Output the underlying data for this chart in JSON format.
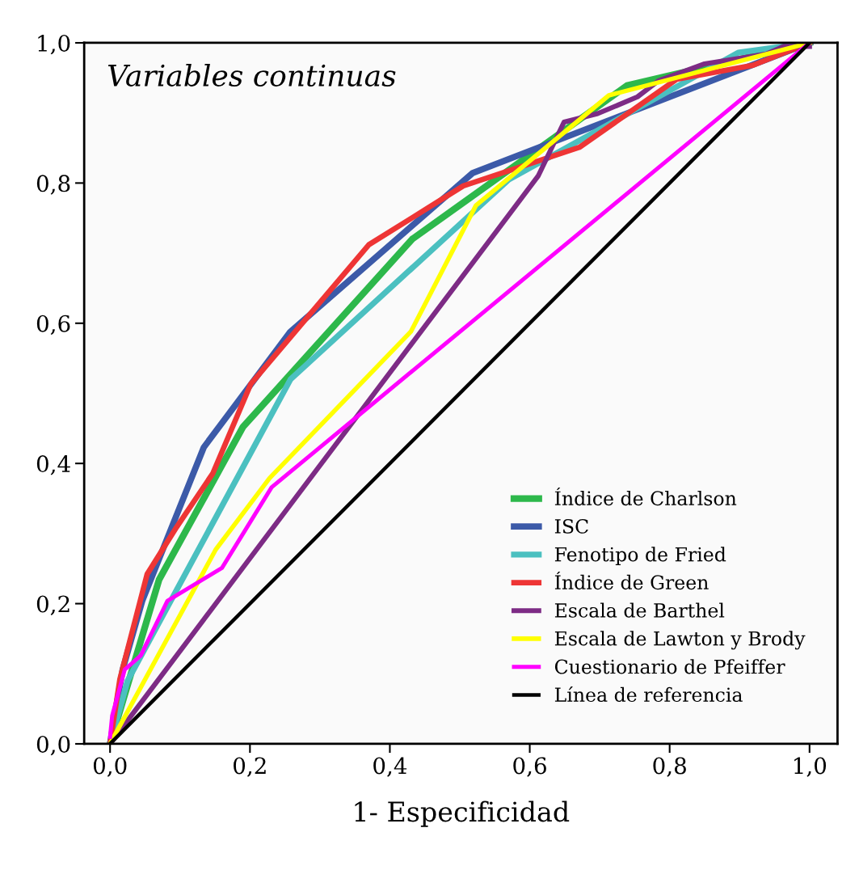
{
  "chart_data": {
    "type": "line",
    "xlabel": "1- Especificidad",
    "annotations": [
      "Variables continuas"
    ],
    "xlim": [
      -0.037,
      1.04
    ],
    "ylim": [
      0,
      1.0
    ],
    "xticks": [
      {
        "value": 0,
        "label": "0,0"
      },
      {
        "value": 0.2,
        "label": "0,2"
      },
      {
        "value": 0.4,
        "label": "0,4"
      },
      {
        "value": 0.6,
        "label": "0,6"
      },
      {
        "value": 0.8,
        "label": "0,8"
      },
      {
        "value": 1.0,
        "label": "1,0"
      }
    ],
    "yticks": [
      {
        "value": 0,
        "label": "0,0"
      },
      {
        "value": 0.2,
        "label": "0,2"
      },
      {
        "value": 0.4,
        "label": "0,4"
      },
      {
        "value": 0.6,
        "label": "0,6"
      },
      {
        "value": 0.8,
        "label": "0,8"
      },
      {
        "value": 1.0,
        "label": "1,0"
      }
    ],
    "grid": false,
    "legend": "bottom right",
    "marker": "none",
    "line_style": "solid",
    "series": [
      {
        "name": "Índice de Charlson",
        "color": "#2db84b",
        "x": [
          0,
          0.07,
          0.19,
          0.432,
          0.739,
          1.0
        ],
        "values": [
          0,
          0.234,
          0.452,
          0.72,
          0.939,
          1.0
        ]
      },
      {
        "name": "ISC",
        "color": "#3c5aa8",
        "x": [
          0,
          0.018,
          0.046,
          0.134,
          0.257,
          0.518,
          1.0
        ],
        "values": [
          0,
          0.106,
          0.204,
          0.423,
          0.587,
          0.814,
          1.0
        ]
      },
      {
        "name": "Fenotipo de Fried",
        "color": "#4bc0c0",
        "x": [
          0,
          0.025,
          0.258,
          0.57,
          0.898,
          1.0
        ],
        "values": [
          0,
          0.09,
          0.52,
          0.805,
          0.986,
          1.0
        ]
      },
      {
        "name": "Índice de Green",
        "color": "#ee3535",
        "x": [
          0,
          0.014,
          0.053,
          0.095,
          0.147,
          0.201,
          0.37,
          0.505,
          0.671,
          0.81,
          0.919,
          1.0
        ],
        "values": [
          0,
          0.092,
          0.242,
          0.309,
          0.386,
          0.513,
          0.712,
          0.796,
          0.851,
          0.948,
          0.968,
          1.0
        ]
      },
      {
        "name": "Escala de Barthel",
        "color": "#7d2b85",
        "x": [
          0,
          0.612,
          0.649,
          0.697,
          0.754,
          0.784,
          0.85,
          0.938,
          0.956,
          0.963,
          1.0
        ],
        "values": [
          0,
          0.81,
          0.887,
          0.899,
          0.923,
          0.946,
          0.97,
          0.984,
          0.992,
          0.995,
          0.995
        ]
      },
      {
        "name": "Escala de Lawton y Brody",
        "color": "#ffff00",
        "x": [
          0,
          0.151,
          0.228,
          0.43,
          0.523,
          0.713,
          1.0
        ],
        "values": [
          0,
          0.277,
          0.379,
          0.588,
          0.768,
          0.925,
          1.0
        ]
      },
      {
        "name": "Cuestionario de Pfeiffer",
        "color": "#ff00ff",
        "x": [
          0,
          0.003,
          0.021,
          0.044,
          0.082,
          0.16,
          0.231,
          1.0
        ],
        "values": [
          0.01,
          0.04,
          0.106,
          0.126,
          0.204,
          0.251,
          0.366,
          1.0
        ]
      },
      {
        "name": "Línea de referencia",
        "color": "#000000",
        "x": [
          0,
          1.0
        ],
        "values": [
          0,
          1.0
        ]
      }
    ]
  }
}
